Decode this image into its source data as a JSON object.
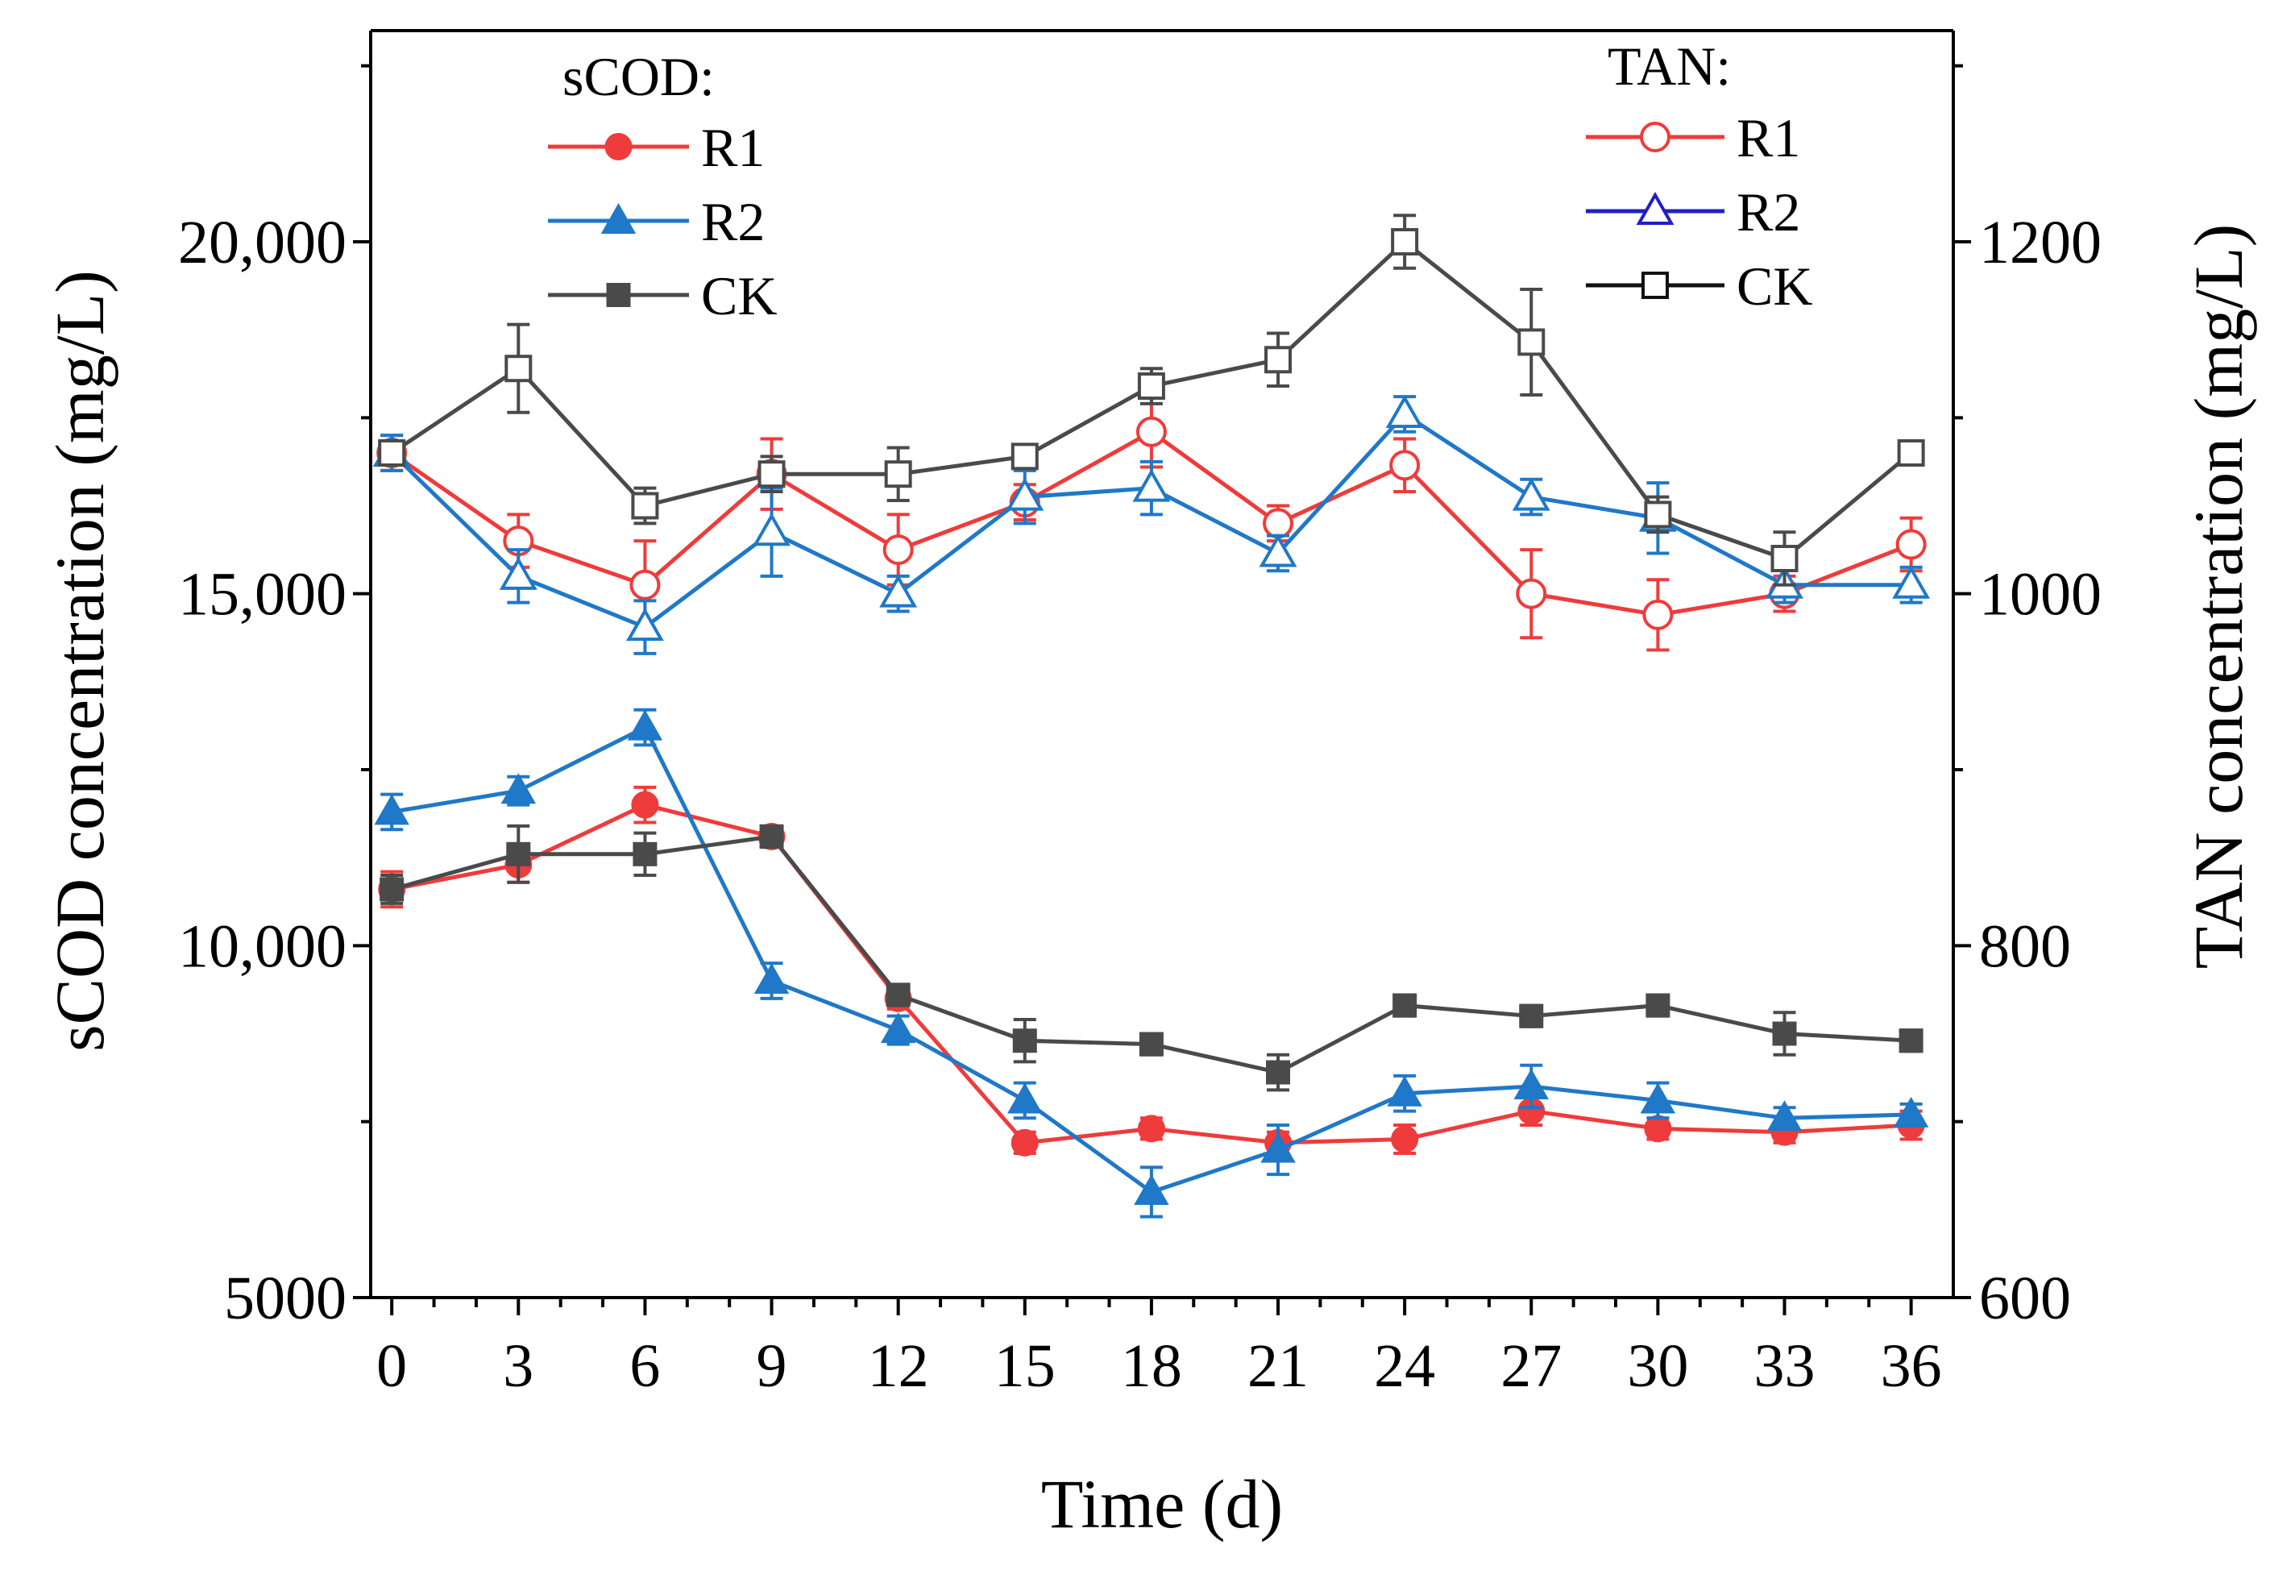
{
  "chart_data": {
    "type": "line",
    "x": [
      0,
      3,
      6,
      9,
      12,
      15,
      18,
      21,
      24,
      27,
      30,
      33,
      36
    ],
    "xlabel": "Time (d)",
    "xlim": [
      -0.5,
      37
    ],
    "y_left": {
      "label": "sCOD concentration (mg/L)",
      "ylim": [
        5000,
        23000
      ],
      "ticks": [
        5000,
        10000,
        15000,
        20000
      ],
      "tick_labels": [
        "5000",
        "10,000",
        "15,000",
        "20,000"
      ]
    },
    "y_right": {
      "label": "TAN concentration (mg/L)",
      "ylim": [
        600,
        1320
      ],
      "ticks": [
        600,
        800,
        1000,
        1200
      ],
      "tick_labels": [
        "600",
        "800",
        "1000",
        "1200"
      ]
    },
    "legend_scod": {
      "title": "sCOD:",
      "entries": [
        {
          "name": "R1",
          "color": "#ef3b3b",
          "marker": "circle",
          "filled": true
        },
        {
          "name": "R2",
          "color": "#1f78c8",
          "marker": "triangle",
          "filled": true
        },
        {
          "name": "CK",
          "color": "#4a4a4a",
          "marker": "square",
          "filled": true
        }
      ]
    },
    "legend_tan": {
      "title": "TAN:",
      "entries": [
        {
          "name": "R1",
          "color": "#ef3b3b",
          "marker": "circle",
          "filled": false
        },
        {
          "name": "R2",
          "color": "#1f1fc8",
          "marker": "triangle",
          "filled": false
        },
        {
          "name": "CK",
          "color": "#111111",
          "marker": "square",
          "filled": false
        }
      ]
    },
    "series": [
      {
        "name": "sCOD R1",
        "axis": "left",
        "color": "#ef3b3b",
        "marker": "circle",
        "filled": true,
        "values": [
          10800,
          11150,
          12000,
          11550,
          9250,
          7200,
          7400,
          7200,
          7250,
          7650,
          7400,
          7350,
          7450
        ],
        "errors": [
          250,
          250,
          250,
          150,
          150,
          150,
          150,
          150,
          200,
          200,
          150,
          150,
          200
        ]
      },
      {
        "name": "sCOD R2",
        "axis": "left",
        "color": "#1f78c8",
        "marker": "triangle",
        "filled": true,
        "values": [
          11900,
          12200,
          13100,
          9500,
          8800,
          7800,
          6500,
          7100,
          7900,
          8000,
          7800,
          7550,
          7600
        ],
        "errors": [
          250,
          200,
          250,
          250,
          200,
          250,
          350,
          350,
          250,
          300,
          250,
          150,
          150
        ]
      },
      {
        "name": "sCOD CK",
        "axis": "left",
        "color": "#4a4a4a",
        "marker": "square",
        "filled": true,
        "values": [
          10800,
          11300,
          11300,
          11550,
          9300,
          8650,
          8600,
          8200,
          9150,
          9000,
          9150,
          8750,
          8650
        ],
        "errors": [
          200,
          400,
          300,
          150,
          150,
          300,
          150,
          250,
          150,
          150,
          150,
          300,
          150
        ]
      },
      {
        "name": "TAN R1",
        "axis": "right",
        "color": "#ef3b3b",
        "marker": "circle",
        "filled": false,
        "values": [
          1080,
          1030,
          1005,
          1068,
          1025,
          1052,
          1092,
          1040,
          1073,
          1000,
          988,
          1000,
          1028
        ],
        "errors": [
          10,
          15,
          25,
          20,
          20,
          10,
          20,
          10,
          15,
          25,
          20,
          10,
          15
        ]
      },
      {
        "name": "TAN R2",
        "axis": "right",
        "color": "#1f78c8",
        "marker": "triangle",
        "filled": false,
        "values": [
          1080,
          1010,
          981,
          1035,
          1000,
          1055,
          1060,
          1023,
          1102,
          1055,
          1043,
          1005,
          1005
        ],
        "errors": [
          10,
          15,
          15,
          25,
          10,
          15,
          15,
          10,
          10,
          10,
          20,
          10,
          10
        ]
      },
      {
        "name": "TAN CK",
        "axis": "right",
        "color": "#4a4a4a",
        "marker": "square",
        "filled": false,
        "values": [
          1080,
          1128,
          1050,
          1068,
          1068,
          1078,
          1118,
          1133,
          1200,
          1143,
          1045,
          1020,
          1080
        ],
        "errors": [
          5,
          25,
          10,
          10,
          15,
          5,
          10,
          15,
          15,
          30,
          10,
          15,
          5
        ]
      }
    ]
  }
}
